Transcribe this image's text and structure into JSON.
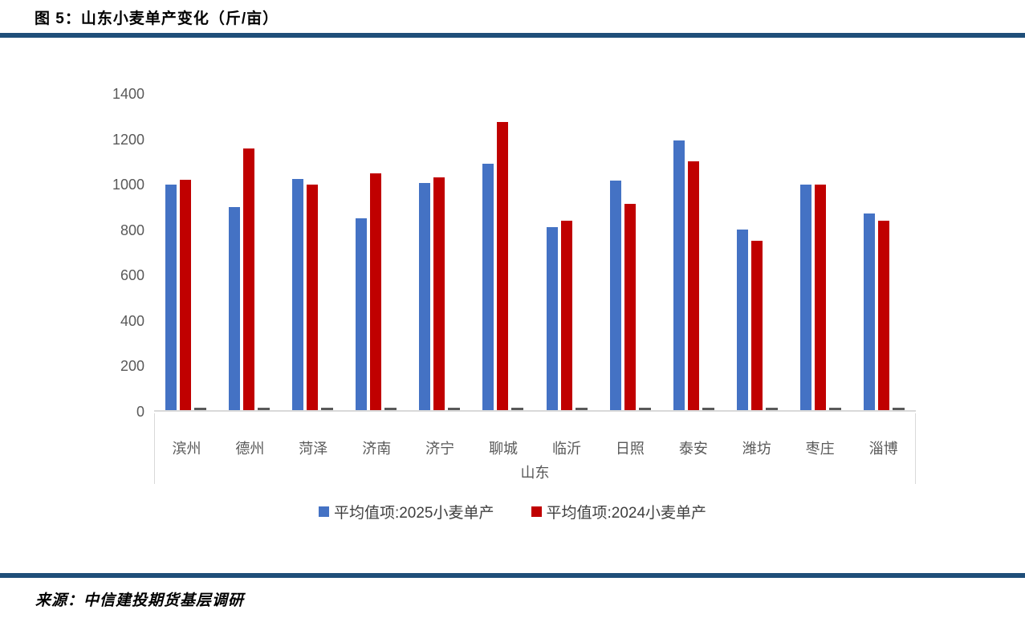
{
  "page": {
    "title": "图 5：山东小麦单产变化（斤/亩）",
    "source": "来源：中信建投期货基层调研",
    "accent_color": "#1F4E79"
  },
  "chart_data": {
    "type": "bar",
    "title": "图 5：山东小麦单产变化（斤/亩）",
    "unit": "斤/亩",
    "categories": [
      "滨州",
      "德州",
      "菏泽",
      "济南",
      "济宁",
      "聊城",
      "临沂",
      "日照",
      "泰安",
      "潍坊",
      "枣庄",
      "淄博"
    ],
    "series": [
      {
        "name": "平均值项:2025小麦单产",
        "color": "#4472C4",
        "values": [
          1000,
          900,
          1025,
          850,
          1005,
          1090,
          810,
          1015,
          1195,
          800,
          1000,
          870
        ]
      },
      {
        "name": "平均值项:2024小麦单产",
        "color": "#C00000",
        "values": [
          1020,
          1160,
          1000,
          1050,
          1030,
          1275,
          840,
          915,
          1100,
          750,
          1000,
          840
        ]
      }
    ],
    "extra_unlabeled_series": {
      "name": "gray-dash",
      "color": "#595959",
      "values": [
        10,
        10,
        10,
        10,
        10,
        10,
        10,
        10,
        10,
        10,
        10,
        10
      ]
    },
    "xlabel": "山东",
    "ylabel": "",
    "ylim": [
      0,
      1400
    ],
    "yticks": [
      0,
      200,
      400,
      600,
      800,
      1000,
      1200,
      1400
    ],
    "grid": false,
    "legend_position": "bottom",
    "colors": {
      "axis_line": "#D9D9D9",
      "tick_text": "#595959",
      "legend_text": "#404040"
    }
  }
}
